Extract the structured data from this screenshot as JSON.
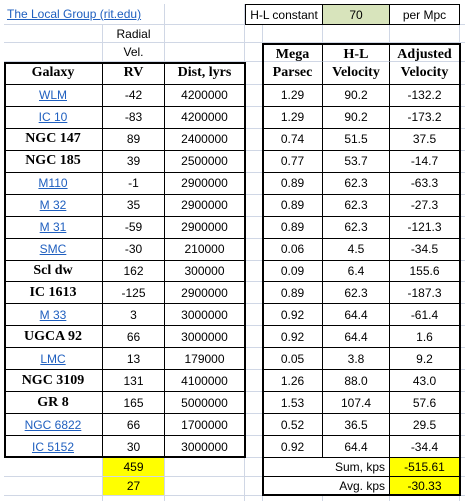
{
  "header": {
    "title": "The Local Group (rit.edu)",
    "constant_label": "H-L constant",
    "constant_value": 70,
    "constant_unit": "per Mpc"
  },
  "table": {
    "radial_header": [
      "Radial",
      "Vel."
    ],
    "left_headers": [
      "Galaxy",
      "RV",
      "Dist, lyrs"
    ],
    "right_headers": [
      [
        "Mega",
        "Parsec"
      ],
      [
        "H-L",
        "Velocity"
      ],
      [
        "Adjusted",
        "Velocity"
      ]
    ],
    "rows": [
      {
        "galaxy": "WLM",
        "link": true,
        "rv": -42,
        "dist": 4200000,
        "mpc": "1.29",
        "hl": "90.2",
        "adj": "-132.2"
      },
      {
        "galaxy": "IC 10",
        "link": true,
        "rv": -83,
        "dist": 4200000,
        "mpc": "1.29",
        "hl": "90.2",
        "adj": "-173.2"
      },
      {
        "galaxy": "NGC 147",
        "link": false,
        "rv": 89,
        "dist": 2400000,
        "mpc": "0.74",
        "hl": "51.5",
        "adj": "37.5"
      },
      {
        "galaxy": "NGC 185",
        "link": false,
        "rv": 39,
        "dist": 2500000,
        "mpc": "0.77",
        "hl": "53.7",
        "adj": "-14.7"
      },
      {
        "galaxy": "M110",
        "link": true,
        "rv": -1,
        "dist": 2900000,
        "mpc": "0.89",
        "hl": "62.3",
        "adj": "-63.3"
      },
      {
        "galaxy": "M 32",
        "link": true,
        "rv": 35,
        "dist": 2900000,
        "mpc": "0.89",
        "hl": "62.3",
        "adj": "-27.3"
      },
      {
        "galaxy": "M 31",
        "link": true,
        "rv": -59,
        "dist": 2900000,
        "mpc": "0.89",
        "hl": "62.3",
        "adj": "-121.3"
      },
      {
        "galaxy": "SMC",
        "link": true,
        "rv": -30,
        "dist": 210000,
        "mpc": "0.06",
        "hl": "4.5",
        "adj": "-34.5"
      },
      {
        "galaxy": "Scl dw",
        "link": false,
        "rv": 162,
        "dist": 300000,
        "mpc": "0.09",
        "hl": "6.4",
        "adj": "155.6"
      },
      {
        "galaxy": "IC 1613",
        "link": false,
        "rv": -125,
        "dist": 2900000,
        "mpc": "0.89",
        "hl": "62.3",
        "adj": "-187.3"
      },
      {
        "galaxy": "M 33",
        "link": true,
        "rv": 3,
        "dist": 3000000,
        "mpc": "0.92",
        "hl": "64.4",
        "adj": "-61.4"
      },
      {
        "galaxy": "UGCA 92",
        "link": false,
        "rv": 66,
        "dist": 3000000,
        "mpc": "0.92",
        "hl": "64.4",
        "adj": "1.6"
      },
      {
        "galaxy": "LMC",
        "link": true,
        "rv": 13,
        "dist": 179000,
        "mpc": "0.05",
        "hl": "3.8",
        "adj": "9.2"
      },
      {
        "galaxy": "NGC 3109",
        "link": false,
        "rv": 131,
        "dist": 4100000,
        "mpc": "1.26",
        "hl": "88.0",
        "adj": "43.0"
      },
      {
        "galaxy": "GR 8",
        "link": false,
        "rv": 165,
        "dist": 5000000,
        "mpc": "1.53",
        "hl": "107.4",
        "adj": "57.6"
      },
      {
        "galaxy": "NGC 6822",
        "link": true,
        "rv": 66,
        "dist": 1700000,
        "mpc": "0.52",
        "hl": "36.5",
        "adj": "29.5"
      },
      {
        "galaxy": "IC 5152",
        "link": true,
        "rv": 30,
        "dist": 3000000,
        "mpc": "0.92",
        "hl": "64.4",
        "adj": "-34.4"
      }
    ],
    "sum_rv": 459,
    "avg_rv": 27,
    "sum_label": "Sum, kps",
    "sum_adj": "-515.61",
    "avg_label": "Avg. kps",
    "avg_adj": "-30.33"
  }
}
